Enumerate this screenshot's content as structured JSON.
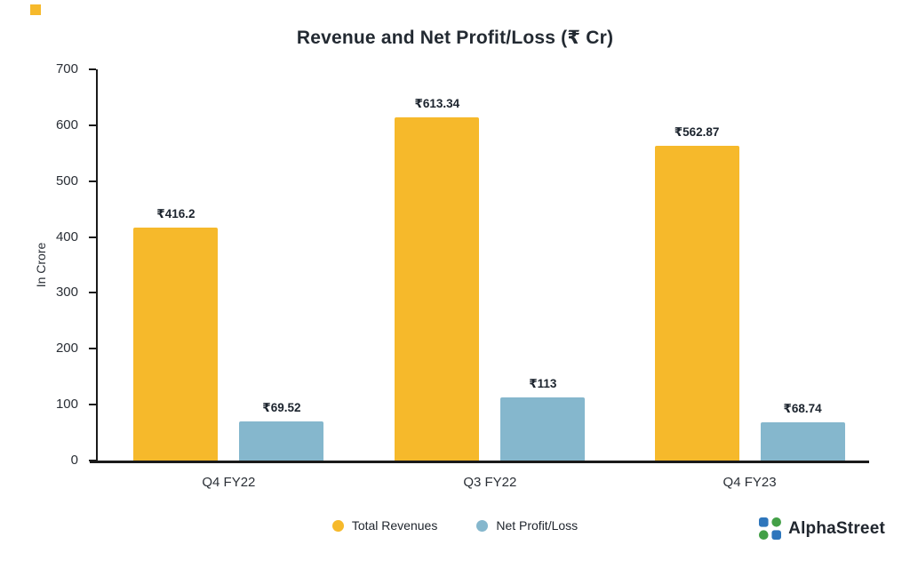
{
  "chart_data": {
    "type": "bar",
    "title": "Revenue and Net Profit/Loss (₹ Cr)",
    "ylabel": "In Crore",
    "categories": [
      "Q4 FY22",
      "Q3 FY22",
      "Q4 FY23"
    ],
    "series": [
      {
        "name": "Total Revenues",
        "color": "#F6B92B",
        "values": [
          416.2,
          613.34,
          562.87
        ],
        "labels": [
          "₹416.2",
          "₹613.34",
          "₹562.87"
        ]
      },
      {
        "name": "Net Profit/Loss",
        "color": "#85B7CD",
        "values": [
          69.52,
          113,
          68.74
        ],
        "labels": [
          "₹69.52",
          "₹113",
          "₹68.74"
        ]
      }
    ],
    "ylim": [
      0,
      700
    ],
    "yticks": [
      0,
      100,
      200,
      300,
      400,
      500,
      600,
      700
    ],
    "grid": false,
    "legend_position": "bottom"
  },
  "branding": {
    "name": "AlphaStreet",
    "colors": {
      "blue": "#2E76BC",
      "green": "#43A047"
    }
  }
}
